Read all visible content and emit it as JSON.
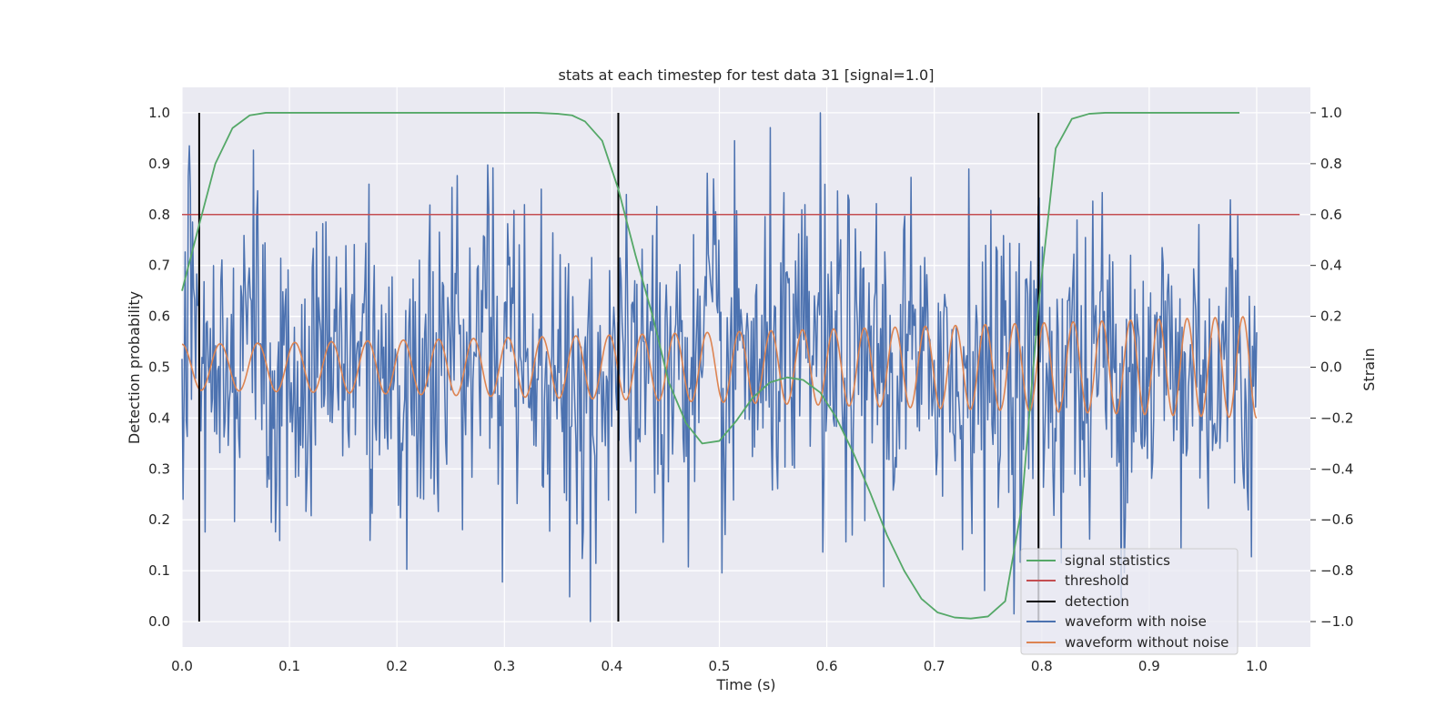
{
  "colors": {
    "background": "#eaeaf2",
    "grid": "#ffffff",
    "signal_statistics": "#55a868",
    "threshold": "#c44e52",
    "detection": "#000000",
    "waveform_with_noise": "#4c72b0",
    "waveform_without_noise": "#dd8452"
  },
  "chart_data": {
    "type": "line",
    "title": "stats at each timestep for test data 31 [signal=1.0]",
    "xlabel": "Time (s)",
    "ylabel_left": "Detection probability",
    "ylabel_right": "Strain",
    "xlim": [
      0.0,
      1.05
    ],
    "ylim_left": [
      -0.05,
      1.05
    ],
    "ylim_right": [
      -1.1,
      1.1
    ],
    "x_ticks": [
      "0.0",
      "0.1",
      "0.2",
      "0.3",
      "0.4",
      "0.5",
      "0.6",
      "0.7",
      "0.8",
      "0.9",
      "1.0"
    ],
    "y_ticks_left": [
      "0.0",
      "0.1",
      "0.2",
      "0.3",
      "0.4",
      "0.5",
      "0.6",
      "0.7",
      "0.8",
      "0.9",
      "1.0"
    ],
    "y_ticks_right": [
      "−1.0",
      "−0.8",
      "−0.6",
      "−0.4",
      "−0.2",
      "0.0",
      "0.2",
      "0.4",
      "0.6",
      "0.8",
      "1.0"
    ],
    "grid": true,
    "legend_position": "lower-right",
    "series": [
      {
        "name": "signal statistics",
        "axis": "left",
        "x": [
          0.0,
          0.016,
          0.031,
          0.047,
          0.063,
          0.078,
          0.094,
          0.125,
          0.2,
          0.3,
          0.33,
          0.35,
          0.363,
          0.375,
          0.391,
          0.406,
          0.422,
          0.438,
          0.453,
          0.469,
          0.484,
          0.5,
          0.516,
          0.531,
          0.547,
          0.563,
          0.578,
          0.594,
          0.609,
          0.625,
          0.641,
          0.656,
          0.672,
          0.688,
          0.703,
          0.719,
          0.734,
          0.75,
          0.766,
          0.781,
          0.797,
          0.813,
          0.828,
          0.844,
          0.859,
          0.875,
          0.9,
          0.95,
          0.984
        ],
        "y": [
          0.65,
          0.78,
          0.9,
          0.97,
          0.995,
          1.0,
          1.0,
          1.0,
          1.0,
          1.0,
          1.0,
          0.998,
          0.995,
          0.983,
          0.945,
          0.85,
          0.72,
          0.6,
          0.47,
          0.39,
          0.35,
          0.355,
          0.395,
          0.44,
          0.47,
          0.48,
          0.475,
          0.45,
          0.4,
          0.33,
          0.25,
          0.17,
          0.1,
          0.045,
          0.018,
          0.008,
          0.006,
          0.01,
          0.04,
          0.22,
          0.62,
          0.93,
          0.988,
          0.998,
          1.0,
          1.0,
          1.0,
          1.0,
          1.0
        ]
      },
      {
        "name": "threshold",
        "axis": "left",
        "x": [
          0.0,
          1.04
        ],
        "y": [
          0.8,
          0.8
        ]
      },
      {
        "name": "detection",
        "axis": "left",
        "x": [
          0.016,
          0.406,
          0.797
        ],
        "y_range": [
          0.0,
          1.0
        ]
      },
      {
        "name": "waveform with noise",
        "axis": "right",
        "x_range": [
          0.0,
          1.0
        ],
        "samples": 1024,
        "amplitude_range": [
          -1.0,
          1.0
        ],
        "extrema": [
          {
            "x": 0.38,
            "y": -1.0
          },
          {
            "x": 0.594,
            "y": 1.0
          }
        ]
      },
      {
        "name": "waveform without noise",
        "axis": "right",
        "x_range": [
          0.0,
          1.0
        ],
        "amplitude_start": 0.09,
        "amplitude_end": 0.2,
        "cycles_start": 28,
        "cycles_end": 39
      }
    ]
  }
}
